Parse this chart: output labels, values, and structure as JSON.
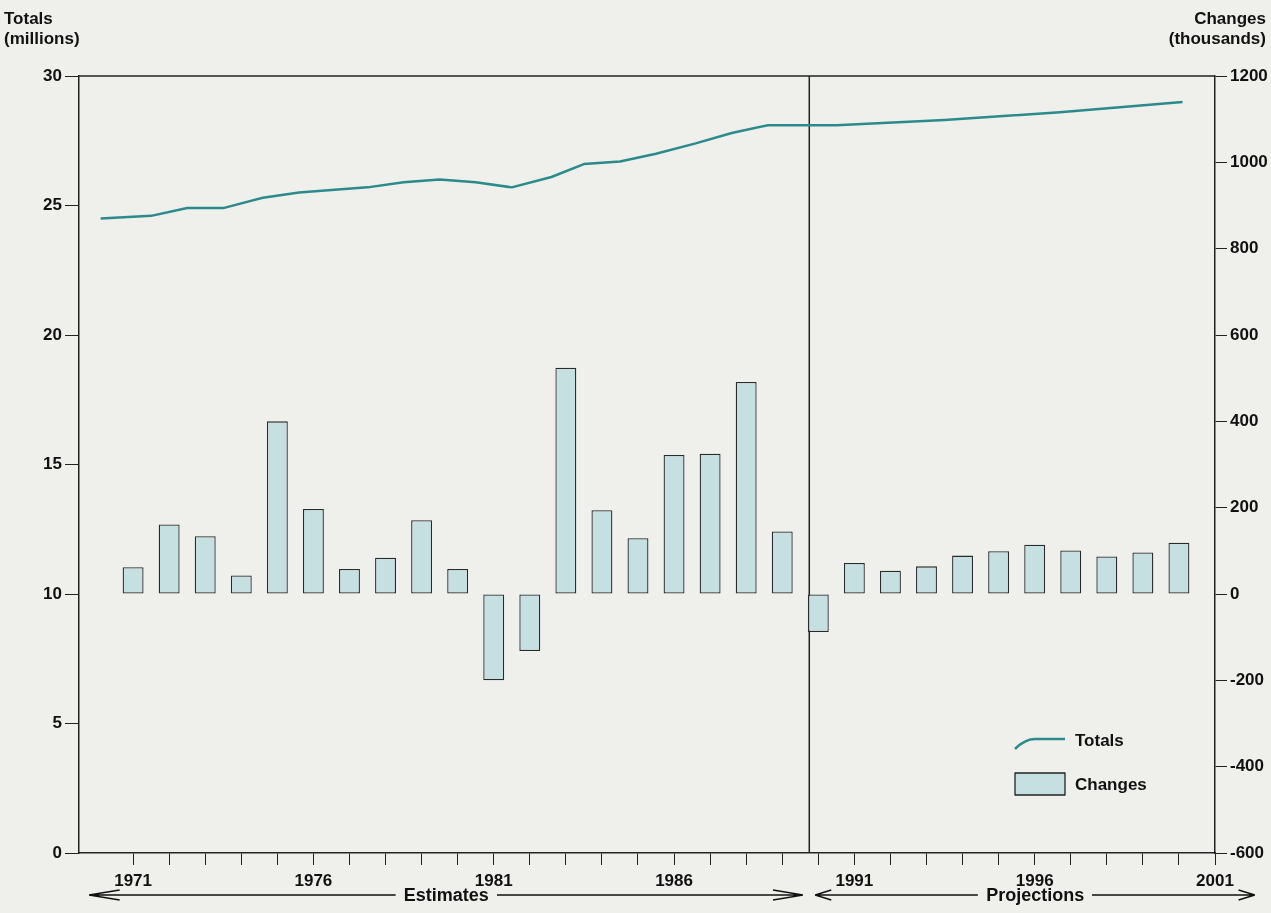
{
  "chart_data": {
    "type": "bar",
    "ylabel": "Totals\n(millions)",
    "y2label": "Changes\n(thousands)",
    "xlim": [
      1969.5,
      2001
    ],
    "ylim": [
      0,
      30
    ],
    "y2lim": [
      -600,
      1200
    ],
    "xticks": [
      1971,
      {
        "value": 1972,
        "label": null
      },
      {
        "value": 1973,
        "label": null
      },
      {
        "value": 1974,
        "label": null
      },
      {
        "value": 1975,
        "label": null
      },
      1976,
      {
        "value": 1977,
        "label": null
      },
      {
        "value": 1978,
        "label": null
      },
      {
        "value": 1979,
        "label": null
      },
      {
        "value": 1980,
        "label": null
      },
      1981,
      {
        "value": 1982,
        "label": null
      },
      {
        "value": 1983,
        "label": null
      },
      {
        "value": 1984,
        "label": null
      },
      {
        "value": 1985,
        "label": null
      },
      1986,
      {
        "value": 1987,
        "label": null
      },
      {
        "value": 1988,
        "label": null
      },
      {
        "value": 1989,
        "label": null
      },
      {
        "value": 1990,
        "label": null
      },
      1991,
      {
        "value": 1992,
        "label": null
      },
      {
        "value": 1993,
        "label": null
      },
      {
        "value": 1994,
        "label": null
      },
      {
        "value": 1995,
        "label": null
      },
      1996,
      {
        "value": 1997,
        "label": null
      },
      {
        "value": 1998,
        "label": null
      },
      {
        "value": 1999,
        "label": null
      },
      {
        "value": 2000,
        "label": null
      },
      2001
    ],
    "yticks": [
      0,
      5,
      10,
      15,
      20,
      25,
      30
    ],
    "y2ticks": [
      -600,
      -400,
      -200,
      0,
      200,
      400,
      600,
      800,
      1000,
      1200
    ],
    "series": [
      {
        "name": "Totals",
        "type": "line",
        "color": "#2b8a8c",
        "x": [
          1970.1,
          1971.5,
          1972.5,
          1973.5,
          1974.6,
          1975.6,
          1976.5,
          1977.5,
          1978.5,
          1979.5,
          1980.5,
          1981.5,
          1982.6,
          1983.5,
          1984.5,
          1985.5,
          1986.6,
          1987.6,
          1988.6,
          1989.7,
          1990.5,
          1993.5,
          1996.7,
          2000.1
        ],
        "values": [
          24.5,
          24.6,
          24.9,
          24.9,
          25.3,
          25.5,
          25.6,
          25.7,
          25.9,
          26.0,
          25.9,
          25.7,
          26.1,
          26.6,
          26.7,
          27.0,
          27.4,
          27.8,
          28.1,
          28.1,
          28.1,
          28.3,
          28.6,
          29.0
        ]
      },
      {
        "name": "Changes",
        "axis": "y2",
        "color": "#c6e0e1",
        "x": [
          1971,
          1972,
          1973,
          1974,
          1975,
          1976,
          1977,
          1978,
          1979,
          1980,
          1981,
          1982,
          1983,
          1984,
          1985,
          1986,
          1987,
          1988,
          1989,
          1990,
          1991,
          1992,
          1993,
          1994,
          1995,
          1996,
          1997,
          1998,
          1999,
          2000
        ],
        "values": [
          62,
          161,
          134,
          43,
          400,
          197,
          58,
          84,
          171,
          58,
          -200,
          -132,
          524,
          194,
          129,
          322,
          325,
          491,
          145,
          -88,
          72,
          54,
          64,
          89,
          99,
          114,
          101,
          87,
          96,
          119
        ]
      }
    ],
    "ref_lines": [
      {
        "axis": "x",
        "value": 1989.75,
        "label": null
      }
    ],
    "annotations": [
      "Estimates",
      "Projections"
    ],
    "legend": "bottom right"
  }
}
